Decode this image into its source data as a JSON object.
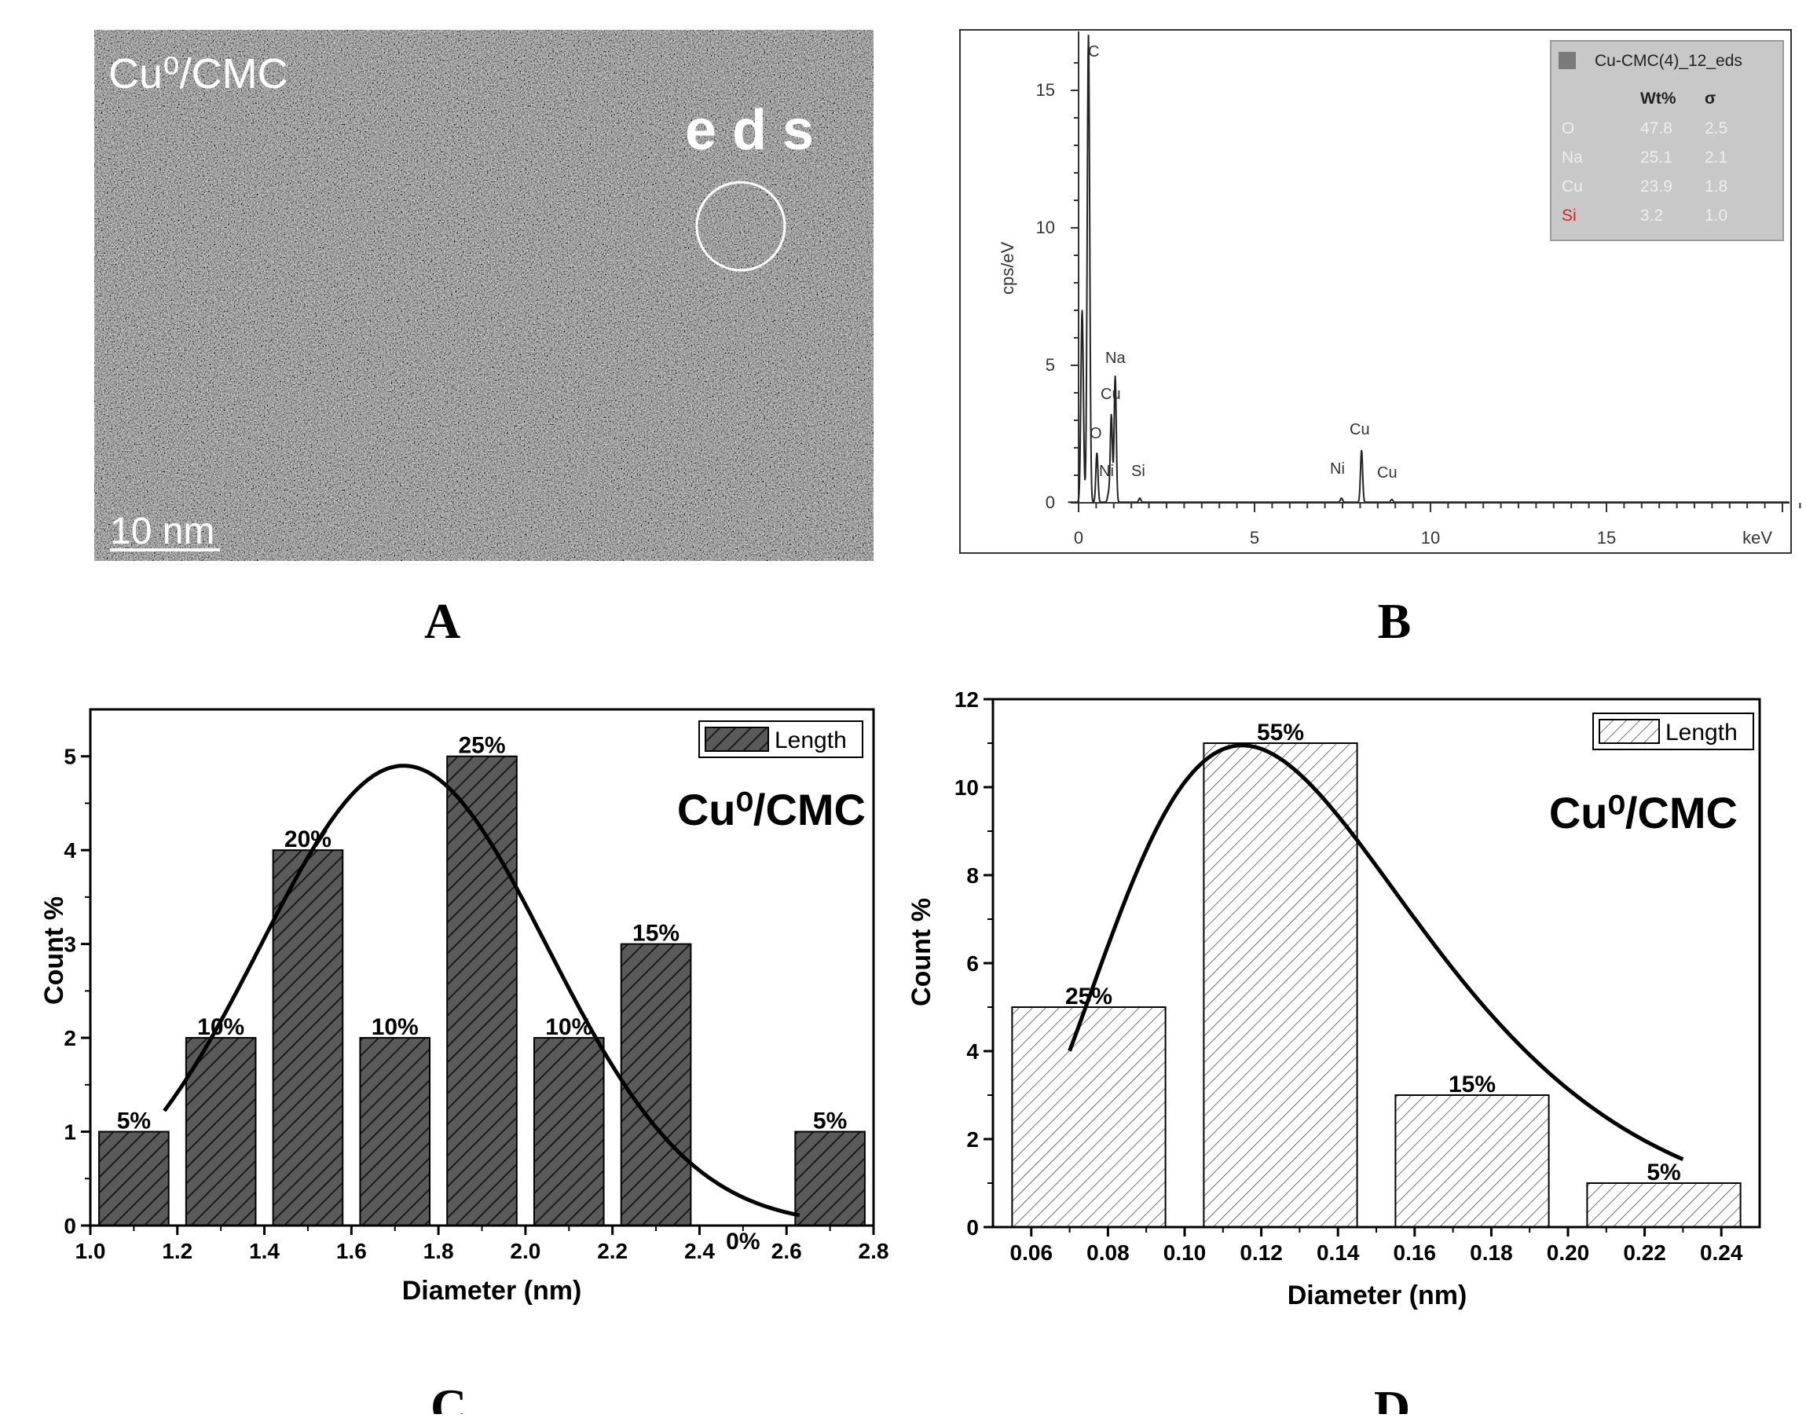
{
  "panels": {
    "A": {
      "letter": "A",
      "label": "Cu⁰/CMC",
      "eds_label": "e d s",
      "scale_bar": "10 nm"
    },
    "B": {
      "letter": "B",
      "ylabel": "cps/eV",
      "x_unit": "keV",
      "xticks": [
        "0",
        "5",
        "10",
        "15"
      ],
      "yticks": [
        "0",
        "5",
        "10",
        "15"
      ],
      "peak_labels": [
        "C",
        "Na",
        "Cu",
        "O",
        "Ni",
        "Si",
        "Cu",
        "Ni",
        "Cu"
      ],
      "legend": {
        "title": "Cu-CMC(4)_12_eds",
        "headers": [
          "Wt%",
          "σ"
        ],
        "rows": [
          {
            "el": "O",
            "wt": "47.8",
            "sigma": "2.5"
          },
          {
            "el": "Na",
            "wt": "25.1",
            "sigma": "2.1"
          },
          {
            "el": "Cu",
            "wt": "23.9",
            "sigma": "1.8"
          },
          {
            "el": "Si",
            "wt": "3.2",
            "sigma": "1.0"
          }
        ]
      }
    },
    "C": {
      "letter": "C"
    },
    "D": {
      "letter": "D"
    }
  },
  "chart_data": [
    {
      "id": "B",
      "type": "line",
      "title": "",
      "xlabel": "keV",
      "ylabel": "cps/eV",
      "xlim": [
        -0.3,
        20.5
      ],
      "ylim": [
        0,
        17
      ],
      "peaks": [
        {
          "x": 0.1,
          "y": 7.0
        },
        {
          "x": 0.28,
          "y": 17.0,
          "label": "C"
        },
        {
          "x": 0.52,
          "y": 1.8,
          "label": "O"
        },
        {
          "x": 0.85,
          "y": 0.3,
          "label": "Ni"
        },
        {
          "x": 0.93,
          "y": 3.2,
          "label": "Cu"
        },
        {
          "x": 1.04,
          "y": 4.6,
          "label": "Na"
        },
        {
          "x": 1.74,
          "y": 0.15,
          "label": "Si"
        },
        {
          "x": 7.47,
          "y": 0.15,
          "label": "Ni"
        },
        {
          "x": 8.04,
          "y": 1.9,
          "label": "Cu"
        },
        {
          "x": 8.9,
          "y": 0.1,
          "label": "Cu"
        }
      ]
    },
    {
      "id": "C",
      "type": "bar",
      "xlabel": "Diameter (nm)",
      "ylabel": "Count %",
      "title": "Cu⁰/CMC",
      "legend": "Length",
      "xlim": [
        1.0,
        2.8
      ],
      "ylim": [
        0,
        5.5
      ],
      "xticks": [
        "1.0",
        "1.2",
        "1.4",
        "1.6",
        "1.8",
        "2.0",
        "2.2",
        "2.4",
        "2.6",
        "2.8"
      ],
      "yticks": [
        "0",
        "1",
        "2",
        "3",
        "4",
        "5"
      ],
      "bins": [
        1.1,
        1.3,
        1.5,
        1.7,
        1.9,
        2.1,
        2.3,
        2.5,
        2.7
      ],
      "bin_width": 0.16,
      "values": [
        1,
        2,
        4,
        2,
        5,
        2,
        3,
        0,
        1
      ],
      "labels": [
        "5%",
        "10%",
        "20%",
        "10%",
        "25%",
        "10%",
        "15%",
        "0%",
        "5%"
      ],
      "fit": {
        "type": "gaussian",
        "center": 1.72,
        "sigma": 0.33,
        "peak": 4.9,
        "x_from": 1.17,
        "x_to": 2.63
      }
    },
    {
      "id": "D",
      "type": "bar",
      "xlabel": "Diameter (nm)",
      "ylabel": "Count %",
      "title": "Cu⁰/CMC",
      "legend": "Length",
      "xlim": [
        0.05,
        0.25
      ],
      "ylim": [
        0,
        12
      ],
      "xticks": [
        "0.06",
        "0.08",
        "0.10",
        "0.12",
        "0.14",
        "0.16",
        "0.18",
        "0.20",
        "0.22",
        "0.24"
      ],
      "yticks": [
        "0",
        "2",
        "4",
        "6",
        "8",
        "10",
        "12"
      ],
      "bins": [
        0.075,
        0.125,
        0.175,
        0.225
      ],
      "bin_width": 0.04,
      "values": [
        5,
        11,
        3,
        1
      ],
      "labels": [
        "25%",
        "55%",
        "15%",
        "5%"
      ],
      "fit": {
        "type": "lognormal",
        "mode": 0.115,
        "sigma": 0.35,
        "peak": 10.95,
        "x_from": 0.07,
        "x_to": 0.23
      }
    }
  ]
}
